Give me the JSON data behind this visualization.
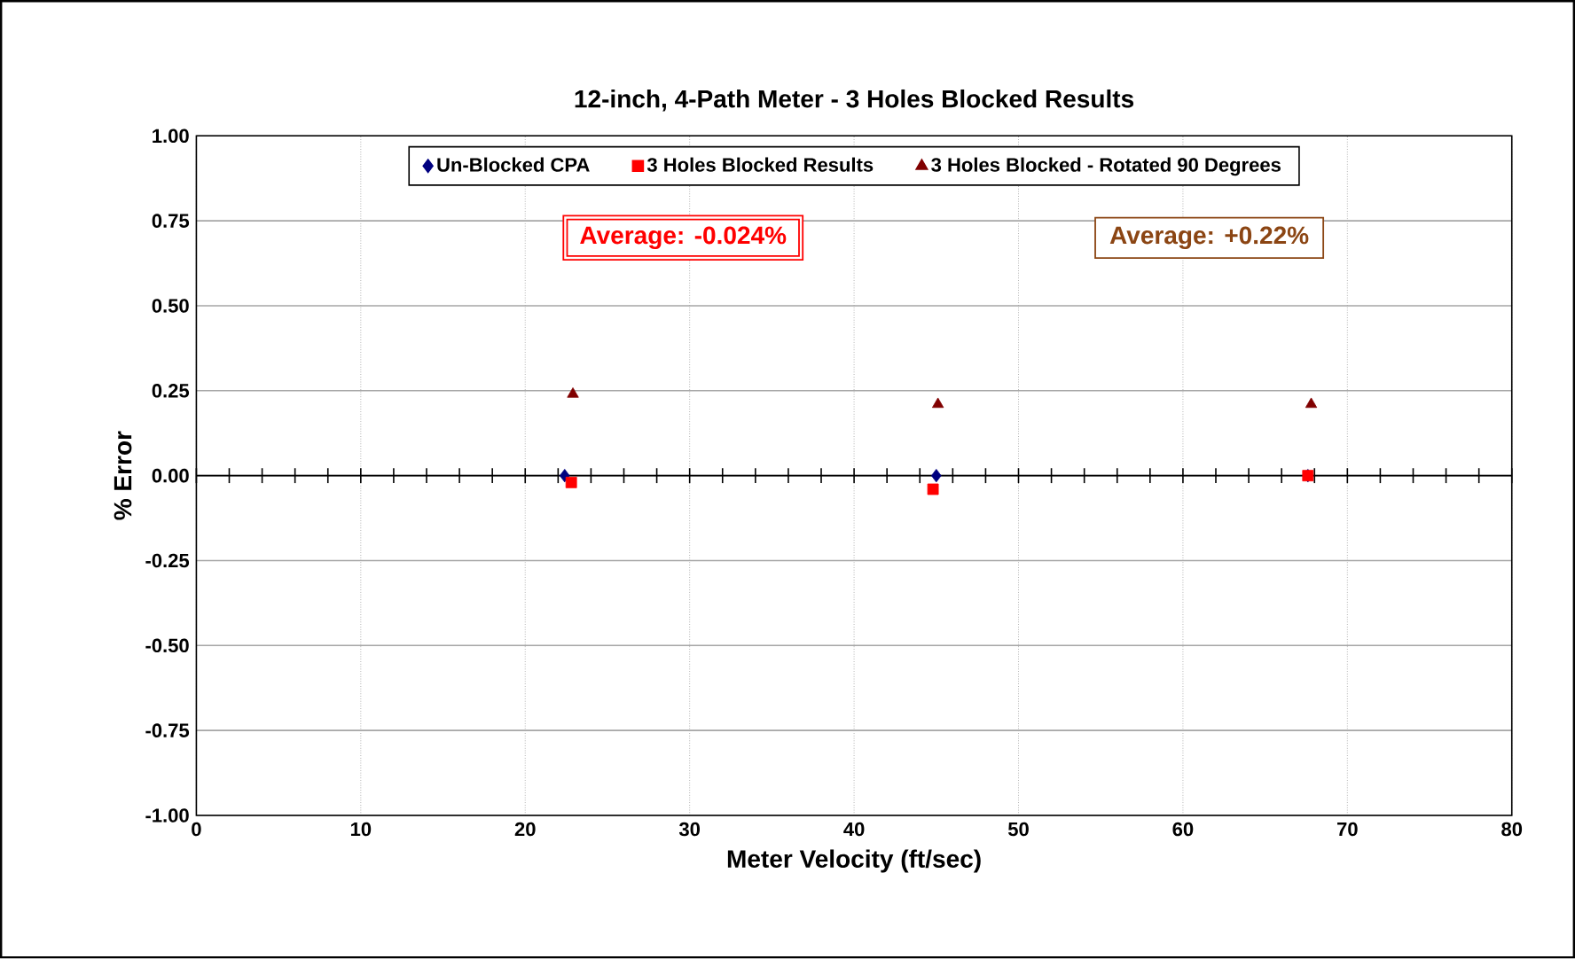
{
  "chart_data": {
    "type": "scatter",
    "title": "12-inch, 4-Path Meter - 3 Holes Blocked Results",
    "xlabel": "Meter Velocity (ft/sec)",
    "ylabel": "% Error",
    "series": [
      {
        "name": "Un-Blocked CPA",
        "color": "#000080",
        "marker": "diamond",
        "x": [
          22.4,
          45.0,
          67.6
        ],
        "values": [
          0,
          0,
          0
        ]
      },
      {
        "name": "3 Holes Blocked Results",
        "color": "#ff0000",
        "marker": "square",
        "x": [
          22.8,
          44.8,
          67.6
        ],
        "values": [
          -0.02,
          -0.04,
          0
        ]
      },
      {
        "name": "3 Holes Blocked - Rotated 90 Degrees",
        "color": "#800000",
        "marker": "triangle",
        "x": [
          22.9,
          45.1,
          67.8
        ],
        "values": [
          0.24,
          0.21,
          0.21
        ]
      }
    ],
    "annotations": [
      "Average: -0.024%",
      "Average: +0.22%"
    ],
    "xlim": [
      0,
      80
    ],
    "xticks": [
      0,
      10,
      20,
      30,
      40,
      50,
      60,
      70,
      80
    ],
    "ylim": [
      -1,
      1
    ],
    "yticks": [
      {
        "value": -1,
        "label": "-1.00"
      },
      {
        "value": -0.75,
        "label": "-0.75"
      },
      {
        "value": -0.5,
        "label": "-0.50"
      },
      {
        "value": -0.25,
        "label": "-0.25"
      },
      {
        "value": 0,
        "label": "0.00"
      },
      {
        "value": 0.25,
        "label": "0.25"
      },
      {
        "value": 0.5,
        "label": "0.50"
      },
      {
        "value": 0.75,
        "label": "0.75"
      },
      {
        "value": 1,
        "label": "1.00"
      }
    ],
    "grid": true,
    "legend": "top"
  }
}
